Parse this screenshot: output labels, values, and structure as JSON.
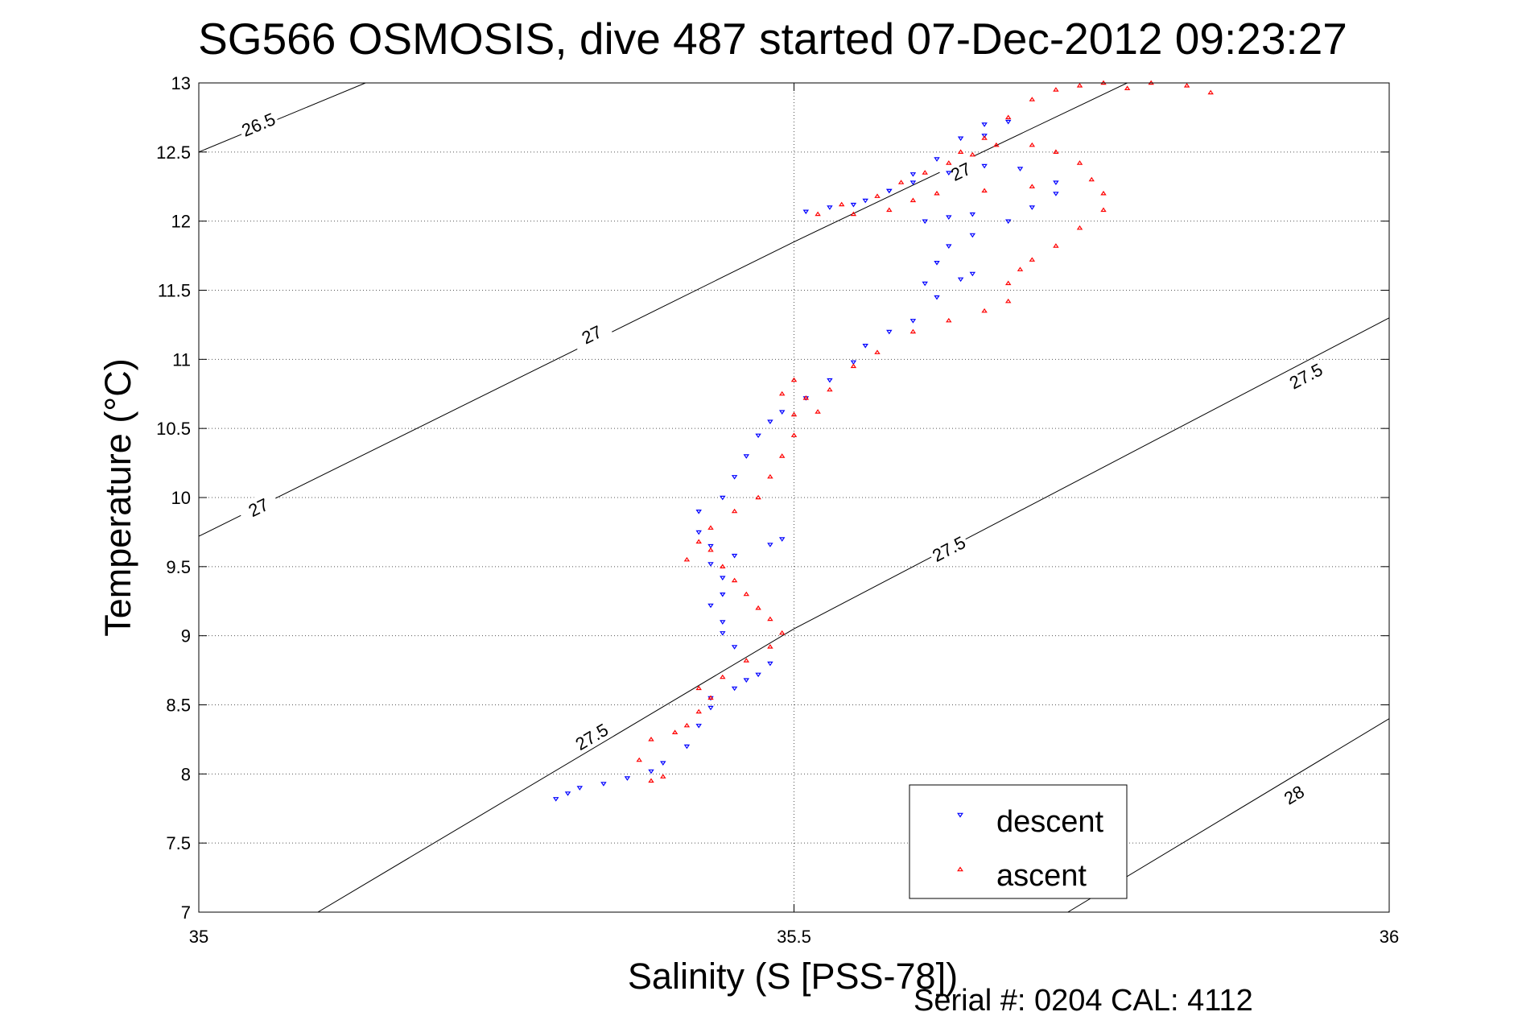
{
  "chart_data": {
    "type": "scatter",
    "title": "SG566 OSMOSIS, dive 487 started 07-Dec-2012 09:23:27",
    "xlabel": "Salinity (S [PSS-78])",
    "ylabel": "Temperature (°C)",
    "xlim": [
      35,
      36
    ],
    "ylim": [
      7,
      13
    ],
    "x_ticks": [
      "35",
      "35.5",
      "36"
    ],
    "y_ticks": [
      "7",
      "7.5",
      "8",
      "8.5",
      "9",
      "9.5",
      "10",
      "10.5",
      "11",
      "11.5",
      "12",
      "12.5",
      "13"
    ],
    "grid": true,
    "legend_position": "bottom-right",
    "footer": "Serial #: 0204  CAL: 4112",
    "density_contours": [
      {
        "label": "26.5",
        "points": [
          [
            35.0,
            12.5
          ],
          [
            35.14,
            13.0
          ]
        ],
        "labels_at": [
          [
            35.05,
            12.7
          ]
        ]
      },
      {
        "label": "27",
        "points": [
          [
            35.0,
            9.72
          ],
          [
            35.5,
            11.85
          ],
          [
            35.78,
            13.0
          ]
        ],
        "labels_at": [
          [
            35.05,
            9.93
          ],
          [
            35.33,
            11.18
          ],
          [
            35.64,
            12.36
          ]
        ]
      },
      {
        "label": "27.5",
        "points": [
          [
            35.1,
            7.0
          ],
          [
            35.5,
            9.05
          ],
          [
            36.0,
            11.3
          ]
        ],
        "labels_at": [
          [
            35.33,
            8.27
          ],
          [
            35.63,
            9.63
          ],
          [
            35.93,
            10.88
          ]
        ]
      },
      {
        "label": "28",
        "points": [
          [
            35.73,
            7.0
          ],
          [
            36.0,
            8.4
          ]
        ],
        "labels_at": [
          [
            35.92,
            7.85
          ]
        ]
      }
    ],
    "series": [
      {
        "name": "descent",
        "color": "#0000ff",
        "marker": "triangle-down",
        "points": [
          [
            35.3,
            7.82
          ],
          [
            35.31,
            7.86
          ],
          [
            35.32,
            7.9
          ],
          [
            35.34,
            7.93
          ],
          [
            35.36,
            7.97
          ],
          [
            35.38,
            8.02
          ],
          [
            35.39,
            8.08
          ],
          [
            35.41,
            8.2
          ],
          [
            35.42,
            8.35
          ],
          [
            35.43,
            8.48
          ],
          [
            35.43,
            8.55
          ],
          [
            35.45,
            8.62
          ],
          [
            35.46,
            8.68
          ],
          [
            35.47,
            8.72
          ],
          [
            35.48,
            8.8
          ],
          [
            35.45,
            8.92
          ],
          [
            35.44,
            9.02
          ],
          [
            35.44,
            9.1
          ],
          [
            35.43,
            9.22
          ],
          [
            35.44,
            9.3
          ],
          [
            35.44,
            9.42
          ],
          [
            35.43,
            9.52
          ],
          [
            35.45,
            9.58
          ],
          [
            35.48,
            9.66
          ],
          [
            35.49,
            9.7
          ],
          [
            35.43,
            9.65
          ],
          [
            35.42,
            9.75
          ],
          [
            35.42,
            9.9
          ],
          [
            35.44,
            10.0
          ],
          [
            35.45,
            10.15
          ],
          [
            35.46,
            10.3
          ],
          [
            35.47,
            10.45
          ],
          [
            35.48,
            10.55
          ],
          [
            35.49,
            10.62
          ],
          [
            35.51,
            10.72
          ],
          [
            35.53,
            10.85
          ],
          [
            35.55,
            10.98
          ],
          [
            35.56,
            11.1
          ],
          [
            35.58,
            11.2
          ],
          [
            35.6,
            11.28
          ],
          [
            35.62,
            11.45
          ],
          [
            35.64,
            11.58
          ],
          [
            35.65,
            11.62
          ],
          [
            35.61,
            11.55
          ],
          [
            35.62,
            11.7
          ],
          [
            35.63,
            11.82
          ],
          [
            35.65,
            11.9
          ],
          [
            35.68,
            12.0
          ],
          [
            35.7,
            12.1
          ],
          [
            35.72,
            12.2
          ],
          [
            35.72,
            12.28
          ],
          [
            35.69,
            12.38
          ],
          [
            35.66,
            12.4
          ],
          [
            35.63,
            12.35
          ],
          [
            35.6,
            12.28
          ],
          [
            35.58,
            12.22
          ],
          [
            35.56,
            12.15
          ],
          [
            35.53,
            12.1
          ],
          [
            35.51,
            12.07
          ],
          [
            35.55,
            12.12
          ],
          [
            35.58,
            12.22
          ],
          [
            35.6,
            12.34
          ],
          [
            35.62,
            12.45
          ],
          [
            35.64,
            12.6
          ],
          [
            35.66,
            12.7
          ],
          [
            35.68,
            12.72
          ],
          [
            35.66,
            12.62
          ],
          [
            35.61,
            12.0
          ],
          [
            35.63,
            12.03
          ],
          [
            35.65,
            12.05
          ]
        ]
      },
      {
        "name": "ascent",
        "color": "#ff0000",
        "marker": "triangle-up",
        "points": [
          [
            35.38,
            7.95
          ],
          [
            35.39,
            7.98
          ],
          [
            35.37,
            8.1
          ],
          [
            35.38,
            8.25
          ],
          [
            35.4,
            8.3
          ],
          [
            35.41,
            8.35
          ],
          [
            35.42,
            8.45
          ],
          [
            35.43,
            8.55
          ],
          [
            35.42,
            8.62
          ],
          [
            35.44,
            8.7
          ],
          [
            35.46,
            8.82
          ],
          [
            35.48,
            8.92
          ],
          [
            35.49,
            9.02
          ],
          [
            35.48,
            9.12
          ],
          [
            35.47,
            9.2
          ],
          [
            35.46,
            9.3
          ],
          [
            35.45,
            9.4
          ],
          [
            35.44,
            9.5
          ],
          [
            35.41,
            9.55
          ],
          [
            35.43,
            9.62
          ],
          [
            35.42,
            9.68
          ],
          [
            35.43,
            9.78
          ],
          [
            35.45,
            9.9
          ],
          [
            35.47,
            10.0
          ],
          [
            35.48,
            10.15
          ],
          [
            35.49,
            10.3
          ],
          [
            35.5,
            10.45
          ],
          [
            35.5,
            10.6
          ],
          [
            35.49,
            10.75
          ],
          [
            35.5,
            10.85
          ],
          [
            35.51,
            10.72
          ],
          [
            35.52,
            10.62
          ],
          [
            35.53,
            10.78
          ],
          [
            35.55,
            10.95
          ],
          [
            35.57,
            11.05
          ],
          [
            35.6,
            11.2
          ],
          [
            35.63,
            11.28
          ],
          [
            35.66,
            11.35
          ],
          [
            35.68,
            11.42
          ],
          [
            35.68,
            11.55
          ],
          [
            35.69,
            11.65
          ],
          [
            35.7,
            11.72
          ],
          [
            35.72,
            11.82
          ],
          [
            35.74,
            11.95
          ],
          [
            35.76,
            12.08
          ],
          [
            35.76,
            12.2
          ],
          [
            35.75,
            12.3
          ],
          [
            35.74,
            12.42
          ],
          [
            35.72,
            12.5
          ],
          [
            35.7,
            12.55
          ],
          [
            35.67,
            12.55
          ],
          [
            35.65,
            12.48
          ],
          [
            35.63,
            12.42
          ],
          [
            35.61,
            12.35
          ],
          [
            35.59,
            12.28
          ],
          [
            35.57,
            12.18
          ],
          [
            35.54,
            12.12
          ],
          [
            35.52,
            12.05
          ],
          [
            35.55,
            12.05
          ],
          [
            35.58,
            12.08
          ],
          [
            35.6,
            12.15
          ],
          [
            35.62,
            12.2
          ],
          [
            35.64,
            12.5
          ],
          [
            35.66,
            12.6
          ],
          [
            35.68,
            12.75
          ],
          [
            35.7,
            12.88
          ],
          [
            35.72,
            12.95
          ],
          [
            35.74,
            12.98
          ],
          [
            35.76,
            13.0
          ],
          [
            35.78,
            12.96
          ],
          [
            35.8,
            13.0
          ],
          [
            35.83,
            12.98
          ],
          [
            35.85,
            12.93
          ],
          [
            35.66,
            12.22
          ],
          [
            35.7,
            12.25
          ]
        ]
      }
    ]
  }
}
